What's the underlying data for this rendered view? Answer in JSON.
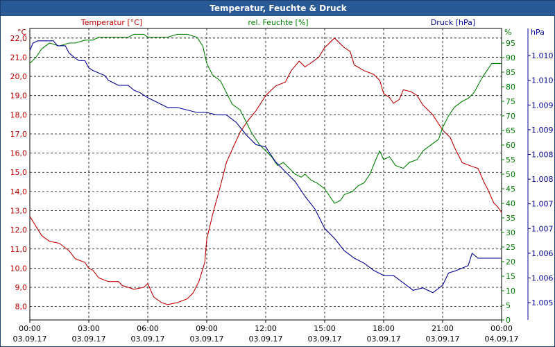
{
  "window": {
    "title": "Temperatur, Feuchte & Druck"
  },
  "colors": {
    "temperature": "#c00000",
    "humidity": "#008000",
    "pressure": "#000099",
    "grid": "#000000"
  },
  "chart_data": {
    "type": "line",
    "title": "Temperatur, Feuchte & Druck",
    "series_labels": {
      "temperature": "Temperatur [°C]",
      "humidity": "rel. Feuchte [%]",
      "pressure": "Druck [hPa]"
    },
    "axis_units": {
      "left": "°C",
      "right1": "%",
      "right2": "hPa"
    },
    "x": {
      "label": "",
      "range_hours": [
        0,
        24
      ],
      "ticks": [
        {
          "h": 0,
          "time": "00:00",
          "date": "03.09.17"
        },
        {
          "h": 3,
          "time": "03:00",
          "date": "03.09.17"
        },
        {
          "h": 6,
          "time": "06:00",
          "date": "03.09.17"
        },
        {
          "h": 9,
          "time": "09:00",
          "date": "03.09.17"
        },
        {
          "h": 12,
          "time": "12:00",
          "date": "03.09.17"
        },
        {
          "h": 15,
          "time": "15:00",
          "date": "03.09.17"
        },
        {
          "h": 18,
          "time": "18:00",
          "date": "03.09.17"
        },
        {
          "h": 21,
          "time": "21:00",
          "date": "03.09.17"
        },
        {
          "h": 24,
          "time": "00:00",
          "date": "04.09.17"
        }
      ]
    },
    "y_temperature": {
      "range": [
        7.3,
        22.5
      ],
      "ticks": [
        8.0,
        9.0,
        10.0,
        11.0,
        12.0,
        13.0,
        14.0,
        15.0,
        16.0,
        17.0,
        18.0,
        19.0,
        20.0,
        21.0,
        22.0
      ],
      "tick_labels": [
        "8,0",
        "9,0",
        "10,0",
        "11,0",
        "12,0",
        "13,0",
        "14,0",
        "15,0",
        "16,0",
        "17,0",
        "18,0",
        "19,0",
        "20,0",
        "21,0",
        "22,0"
      ]
    },
    "y_humidity": {
      "range": [
        0,
        100
      ],
      "ticks": [
        0,
        5,
        10,
        15,
        20,
        25,
        30,
        35,
        40,
        45,
        50,
        55,
        60,
        65,
        70,
        75,
        80,
        85,
        90,
        95
      ],
      "tick_labels": [
        "0",
        "5",
        "10",
        "15",
        "20",
        "25",
        "30",
        "35",
        "40",
        "45",
        "50",
        "55",
        "60",
        "65",
        "70",
        "75",
        "80",
        "85",
        "90",
        "95"
      ]
    },
    "y_pressure": {
      "range": [
        1004.6,
        1010.5
      ],
      "tick_values": [
        1004.95,
        1005.45,
        1005.95,
        1006.45,
        1006.95,
        1007.45,
        1007.95,
        1008.45,
        1008.95,
        1009.45,
        1009.95
      ],
      "tick_labels": [
        "1.005",
        "1.006",
        "1.006",
        "1.007",
        "1.007",
        "1.008",
        "1.008",
        "1.009",
        "1.009",
        "1.010",
        "1.010"
      ]
    },
    "series": [
      {
        "key": "temperature",
        "name": "Temperatur [°C]",
        "axis": "y_temperature",
        "points": [
          [
            0,
            12.7
          ],
          [
            0.3,
            12.2
          ],
          [
            0.6,
            11.7
          ],
          [
            1,
            11.4
          ],
          [
            1.5,
            11.3
          ],
          [
            2,
            10.9
          ],
          [
            2.3,
            10.5
          ],
          [
            2.8,
            10.3
          ],
          [
            3,
            10.0
          ],
          [
            3.2,
            9.9
          ],
          [
            3.5,
            9.5
          ],
          [
            4,
            9.3
          ],
          [
            4.5,
            9.3
          ],
          [
            4.7,
            9.1
          ],
          [
            5,
            9.0
          ],
          [
            5.3,
            8.9
          ],
          [
            5.8,
            9.0
          ],
          [
            6,
            9.2
          ],
          [
            6.3,
            8.5
          ],
          [
            6.7,
            8.2
          ],
          [
            7,
            8.1
          ],
          [
            7.5,
            8.2
          ],
          [
            8,
            8.4
          ],
          [
            8.3,
            8.7
          ],
          [
            8.6,
            9.3
          ],
          [
            8.9,
            10.3
          ],
          [
            9.0,
            11.5
          ],
          [
            9.3,
            12.8
          ],
          [
            9.7,
            14.3
          ],
          [
            10,
            15.5
          ],
          [
            10.3,
            16.2
          ],
          [
            10.7,
            17.1
          ],
          [
            11.1,
            17.7
          ],
          [
            11.5,
            18.2
          ],
          [
            12,
            19.0
          ],
          [
            12.5,
            19.5
          ],
          [
            13,
            19.7
          ],
          [
            13.3,
            20.3
          ],
          [
            13.7,
            20.8
          ],
          [
            14,
            20.5
          ],
          [
            14.3,
            20.7
          ],
          [
            14.7,
            21.0
          ],
          [
            15,
            21.5
          ],
          [
            15.3,
            21.8
          ],
          [
            15.5,
            22.0
          ],
          [
            15.7,
            21.8
          ],
          [
            16,
            21.5
          ],
          [
            16.3,
            21.3
          ],
          [
            16.5,
            20.6
          ],
          [
            17,
            20.3
          ],
          [
            17.5,
            20.1
          ],
          [
            17.8,
            19.8
          ],
          [
            18,
            19.1
          ],
          [
            18.3,
            18.9
          ],
          [
            18.5,
            18.6
          ],
          [
            18.8,
            18.8
          ],
          [
            19.0,
            19.3
          ],
          [
            19.4,
            19.2
          ],
          [
            19.7,
            19.0
          ],
          [
            20,
            18.5
          ],
          [
            20.5,
            18.0
          ],
          [
            21,
            17.2
          ],
          [
            21.4,
            16.8
          ],
          [
            21.6,
            16.3
          ],
          [
            22,
            15.5
          ],
          [
            22.5,
            15.3
          ],
          [
            22.8,
            15.2
          ],
          [
            23.1,
            14.5
          ],
          [
            23.3,
            14.1
          ],
          [
            23.6,
            13.4
          ],
          [
            23.8,
            13.2
          ],
          [
            24,
            12.9
          ]
        ]
      },
      {
        "key": "humidity",
        "name": "rel. Feuchte [%]",
        "axis": "y_humidity",
        "points": [
          [
            0,
            88
          ],
          [
            0.3,
            90
          ],
          [
            0.6,
            93
          ],
          [
            1,
            95
          ],
          [
            1.5,
            94
          ],
          [
            2,
            95
          ],
          [
            2.3,
            95
          ],
          [
            2.8,
            96
          ],
          [
            3.2,
            96
          ],
          [
            3.5,
            97
          ],
          [
            4,
            97
          ],
          [
            4.5,
            97
          ],
          [
            5,
            97
          ],
          [
            5.3,
            98
          ],
          [
            5.8,
            98
          ],
          [
            6,
            97
          ],
          [
            6.5,
            97
          ],
          [
            7,
            97
          ],
          [
            7.5,
            98
          ],
          [
            8,
            98
          ],
          [
            8.5,
            97
          ],
          [
            8.8,
            94
          ],
          [
            9.0,
            88
          ],
          [
            9.3,
            84
          ],
          [
            9.7,
            82
          ],
          [
            10,
            78
          ],
          [
            10.3,
            74
          ],
          [
            10.7,
            72
          ],
          [
            11,
            68
          ],
          [
            11.3,
            64
          ],
          [
            11.7,
            60
          ],
          [
            12,
            58
          ],
          [
            12.3,
            56
          ],
          [
            12.6,
            53
          ],
          [
            12.9,
            54
          ],
          [
            13.2,
            52
          ],
          [
            13.5,
            50
          ],
          [
            13.8,
            49
          ],
          [
            14,
            50
          ],
          [
            14.3,
            48
          ],
          [
            14.6,
            47
          ],
          [
            15,
            45
          ],
          [
            15.3,
            42
          ],
          [
            15.5,
            40
          ],
          [
            15.8,
            41
          ],
          [
            16,
            43
          ],
          [
            16.4,
            44
          ],
          [
            16.7,
            46
          ],
          [
            17,
            47
          ],
          [
            17.3,
            50
          ],
          [
            17.6,
            55
          ],
          [
            17.8,
            58
          ],
          [
            18,
            55
          ],
          [
            18.3,
            56
          ],
          [
            18.6,
            53
          ],
          [
            19,
            52
          ],
          [
            19.3,
            54
          ],
          [
            19.7,
            55
          ],
          [
            20,
            58
          ],
          [
            20.4,
            60
          ],
          [
            20.8,
            62
          ],
          [
            21,
            66
          ],
          [
            21.3,
            70
          ],
          [
            21.6,
            73
          ],
          [
            22,
            75
          ],
          [
            22.3,
            76
          ],
          [
            22.6,
            78
          ],
          [
            23,
            83
          ],
          [
            23.3,
            86
          ],
          [
            23.5,
            88
          ],
          [
            24,
            88
          ]
        ]
      },
      {
        "key": "pressure",
        "name": "Druck [hPa]",
        "axis": "y_pressure",
        "points": [
          [
            0,
            1010.05
          ],
          [
            0.15,
            1010.2
          ],
          [
            0.4,
            1010.25
          ],
          [
            1.2,
            1010.25
          ],
          [
            1.4,
            1010.15
          ],
          [
            1.8,
            1010.15
          ],
          [
            2.0,
            1010.0
          ],
          [
            2.3,
            1009.9
          ],
          [
            2.5,
            1009.85
          ],
          [
            2.8,
            1009.85
          ],
          [
            3.0,
            1009.7
          ],
          [
            3.2,
            1009.65
          ],
          [
            3.5,
            1009.6
          ],
          [
            3.8,
            1009.55
          ],
          [
            4.0,
            1009.45
          ],
          [
            4.5,
            1009.35
          ],
          [
            5.0,
            1009.35
          ],
          [
            5.3,
            1009.25
          ],
          [
            5.6,
            1009.2
          ],
          [
            6.0,
            1009.1
          ],
          [
            6.5,
            1009.0
          ],
          [
            7.0,
            1008.9
          ],
          [
            7.5,
            1008.9
          ],
          [
            8.0,
            1008.85
          ],
          [
            8.5,
            1008.8
          ],
          [
            9.0,
            1008.8
          ],
          [
            9.5,
            1008.75
          ],
          [
            10.0,
            1008.75
          ],
          [
            10.5,
            1008.6
          ],
          [
            11.0,
            1008.35
          ],
          [
            11.5,
            1008.15
          ],
          [
            12.0,
            1008.1
          ],
          [
            12.5,
            1007.8
          ],
          [
            13.0,
            1007.6
          ],
          [
            13.5,
            1007.4
          ],
          [
            14.0,
            1007.1
          ],
          [
            14.5,
            1006.85
          ],
          [
            15.0,
            1006.45
          ],
          [
            15.5,
            1006.25
          ],
          [
            16.0,
            1006.0
          ],
          [
            16.5,
            1005.85
          ],
          [
            17.0,
            1005.75
          ],
          [
            17.5,
            1005.6
          ],
          [
            18.0,
            1005.5
          ],
          [
            18.5,
            1005.5
          ],
          [
            19.0,
            1005.35
          ],
          [
            19.5,
            1005.2
          ],
          [
            20.0,
            1005.25
          ],
          [
            20.5,
            1005.15
          ],
          [
            21.0,
            1005.3
          ],
          [
            21.3,
            1005.55
          ],
          [
            21.7,
            1005.6
          ],
          [
            22.0,
            1005.65
          ],
          [
            22.3,
            1005.7
          ],
          [
            22.5,
            1005.95
          ],
          [
            22.8,
            1005.85
          ],
          [
            24.0,
            1005.85
          ]
        ]
      }
    ]
  }
}
